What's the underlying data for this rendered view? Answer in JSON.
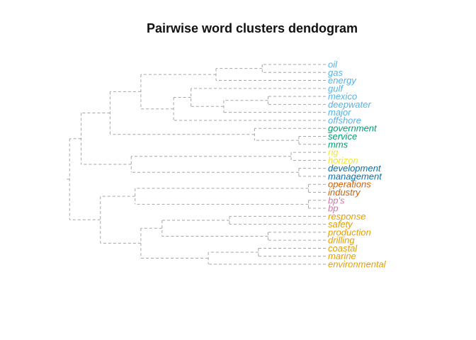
{
  "title": "Pairwise word clusters dendogram",
  "leaves": [
    {
      "label": "oil",
      "color": "#56B4E9"
    },
    {
      "label": "gas",
      "color": "#56B4E9"
    },
    {
      "label": "energy",
      "color": "#56B4E9"
    },
    {
      "label": "gulf",
      "color": "#56B4E9"
    },
    {
      "label": "mexico",
      "color": "#56B4E9"
    },
    {
      "label": "deepwater",
      "color": "#56B4E9"
    },
    {
      "label": "major",
      "color": "#56B4E9"
    },
    {
      "label": "offshore",
      "color": "#56B4E9"
    },
    {
      "label": "government",
      "color": "#009E73"
    },
    {
      "label": "service",
      "color": "#009E73"
    },
    {
      "label": "mms",
      "color": "#009E73"
    },
    {
      "label": "rig",
      "color": "#F0E442"
    },
    {
      "label": "horizon",
      "color": "#F0E442"
    },
    {
      "label": "development",
      "color": "#0072B2"
    },
    {
      "label": "management",
      "color": "#0072B2"
    },
    {
      "label": "operations",
      "color": "#D55E00"
    },
    {
      "label": "industry",
      "color": "#D55E00"
    },
    {
      "label": "bp's",
      "color": "#CC79A7"
    },
    {
      "label": "bp",
      "color": "#CC79A7"
    },
    {
      "label": "response",
      "color": "#E69F00"
    },
    {
      "label": "safety",
      "color": "#E69F00"
    },
    {
      "label": "production",
      "color": "#E69F00"
    },
    {
      "label": "drilling",
      "color": "#E69F00"
    },
    {
      "label": "coastal",
      "color": "#E69F00"
    },
    {
      "label": "marine",
      "color": "#E69F00"
    },
    {
      "label": "environmental",
      "color": "#E69F00"
    }
  ],
  "branch_color": "#a6a6a6",
  "merges": [
    {
      "a": "oil",
      "b": "gas",
      "height": 0.33
    },
    {
      "a": "m1",
      "b": "energy",
      "height": 0.57
    },
    {
      "a": "mexico",
      "b": "deepwater",
      "height": 0.3
    },
    {
      "a": "m3",
      "b": "major",
      "height": 0.53
    },
    {
      "a": "gulf",
      "b": "m4",
      "height": 0.7
    },
    {
      "a": "m5",
      "b": "offshore",
      "height": 0.79
    },
    {
      "a": "m2",
      "b": "m6",
      "height": 0.96
    },
    {
      "a": "service",
      "b": "mms",
      "height": 0.14
    },
    {
      "a": "government",
      "b": "m8",
      "height": 0.37
    },
    {
      "a": "m7",
      "b": "m9",
      "height": 1.12
    },
    {
      "a": "rig",
      "b": "horizon",
      "height": 0.18
    },
    {
      "a": "development",
      "b": "management",
      "height": 0.14
    },
    {
      "a": "m11",
      "b": "m12",
      "height": 1.01
    },
    {
      "a": "m10",
      "b": "m13",
      "height": 1.27
    },
    {
      "a": "operations",
      "b": "industry",
      "height": 0.09
    },
    {
      "a": "bp's",
      "b": "bp",
      "height": 0.09
    },
    {
      "a": "m15",
      "b": "m16",
      "height": 0.99
    },
    {
      "a": "response",
      "b": "safety",
      "height": 0.5
    },
    {
      "a": "production",
      "b": "drilling",
      "height": 0.3
    },
    {
      "a": "m18",
      "b": "m19",
      "height": 0.85
    },
    {
      "a": "coastal",
      "b": "marine",
      "height": 0.35
    },
    {
      "a": "m21",
      "b": "environmental",
      "height": 0.61
    },
    {
      "a": "m20",
      "b": "m22",
      "height": 0.96
    },
    {
      "a": "m17",
      "b": "m23",
      "height": 1.17
    },
    {
      "a": "m14",
      "b": "m24",
      "height": 1.33
    }
  ]
}
